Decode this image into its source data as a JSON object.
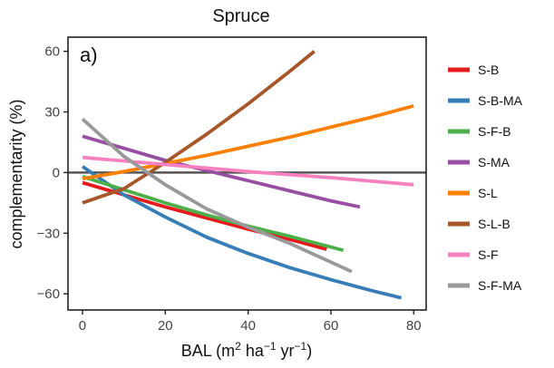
{
  "chart_data": {
    "type": "line",
    "title": "Spruce",
    "panel_label": "a)",
    "xlabel_main": "BAL (m",
    "xlabel_sup1": "2",
    "xlabel_mid": " ha",
    "xlabel_sup2": "−1",
    "xlabel_mid2": " yr",
    "xlabel_sup3": "−1",
    "xlabel_end": ")",
    "ylabel": "complementarity (%)",
    "xlim": [
      -3.5,
      83
    ],
    "ylim": [
      -68,
      67
    ],
    "xticks": [
      0,
      20,
      40,
      60,
      80
    ],
    "yticks": [
      60,
      30,
      0,
      -30,
      -60
    ],
    "ytick_labels": [
      "60",
      "30",
      "0",
      "−30",
      "−60"
    ],
    "zero_line": true,
    "legend_position": "right",
    "series": [
      {
        "name": "S-B",
        "color": "#e41a1c",
        "x": [
          0,
          10,
          20,
          30,
          40,
          50,
          59
        ],
        "y": [
          -5,
          -11,
          -17,
          -22.5,
          -28,
          -33,
          -38
        ]
      },
      {
        "name": "S-B-MA",
        "color": "#377eb8",
        "x": [
          0,
          10,
          20,
          30,
          40,
          50,
          60,
          70,
          77
        ],
        "y": [
          3,
          -11,
          -22,
          -32,
          -40,
          -47,
          -53,
          -58.5,
          -62
        ]
      },
      {
        "name": "S-F-B",
        "color": "#4daf4a",
        "x": [
          0,
          10,
          20,
          30,
          40,
          50,
          63
        ],
        "y": [
          -2,
          -8.5,
          -15,
          -21,
          -26.5,
          -31.5,
          -38.5
        ]
      },
      {
        "name": "S-MA",
        "color": "#984ea3",
        "x": [
          0,
          10,
          20,
          30,
          40,
          50,
          60,
          67
        ],
        "y": [
          18,
          12,
          6,
          1,
          -4,
          -9,
          -14,
          -17
        ]
      },
      {
        "name": "S-L",
        "color": "#ff7f00",
        "x": [
          0,
          10,
          20,
          30,
          40,
          50,
          60,
          70,
          80
        ],
        "y": [
          -3,
          0.5,
          4.5,
          8.5,
          13,
          17.5,
          22.5,
          27.5,
          33
        ]
      },
      {
        "name": "S-L-B",
        "color": "#a65628",
        "x": [
          0,
          10,
          20,
          30,
          40,
          50,
          56
        ],
        "y": [
          -15,
          -8,
          5,
          19,
          34,
          50,
          60
        ]
      },
      {
        "name": "S-F",
        "color": "#f781bf",
        "x": [
          0,
          20,
          40,
          60,
          80
        ],
        "y": [
          7.5,
          4,
          0.5,
          -2.5,
          -6
        ]
      },
      {
        "name": "S-F-MA",
        "color": "#999999",
        "x": [
          0,
          10,
          20,
          30,
          40,
          50,
          65
        ],
        "y": [
          26.5,
          8,
          -6,
          -18,
          -27,
          -35,
          -49
        ]
      }
    ]
  }
}
